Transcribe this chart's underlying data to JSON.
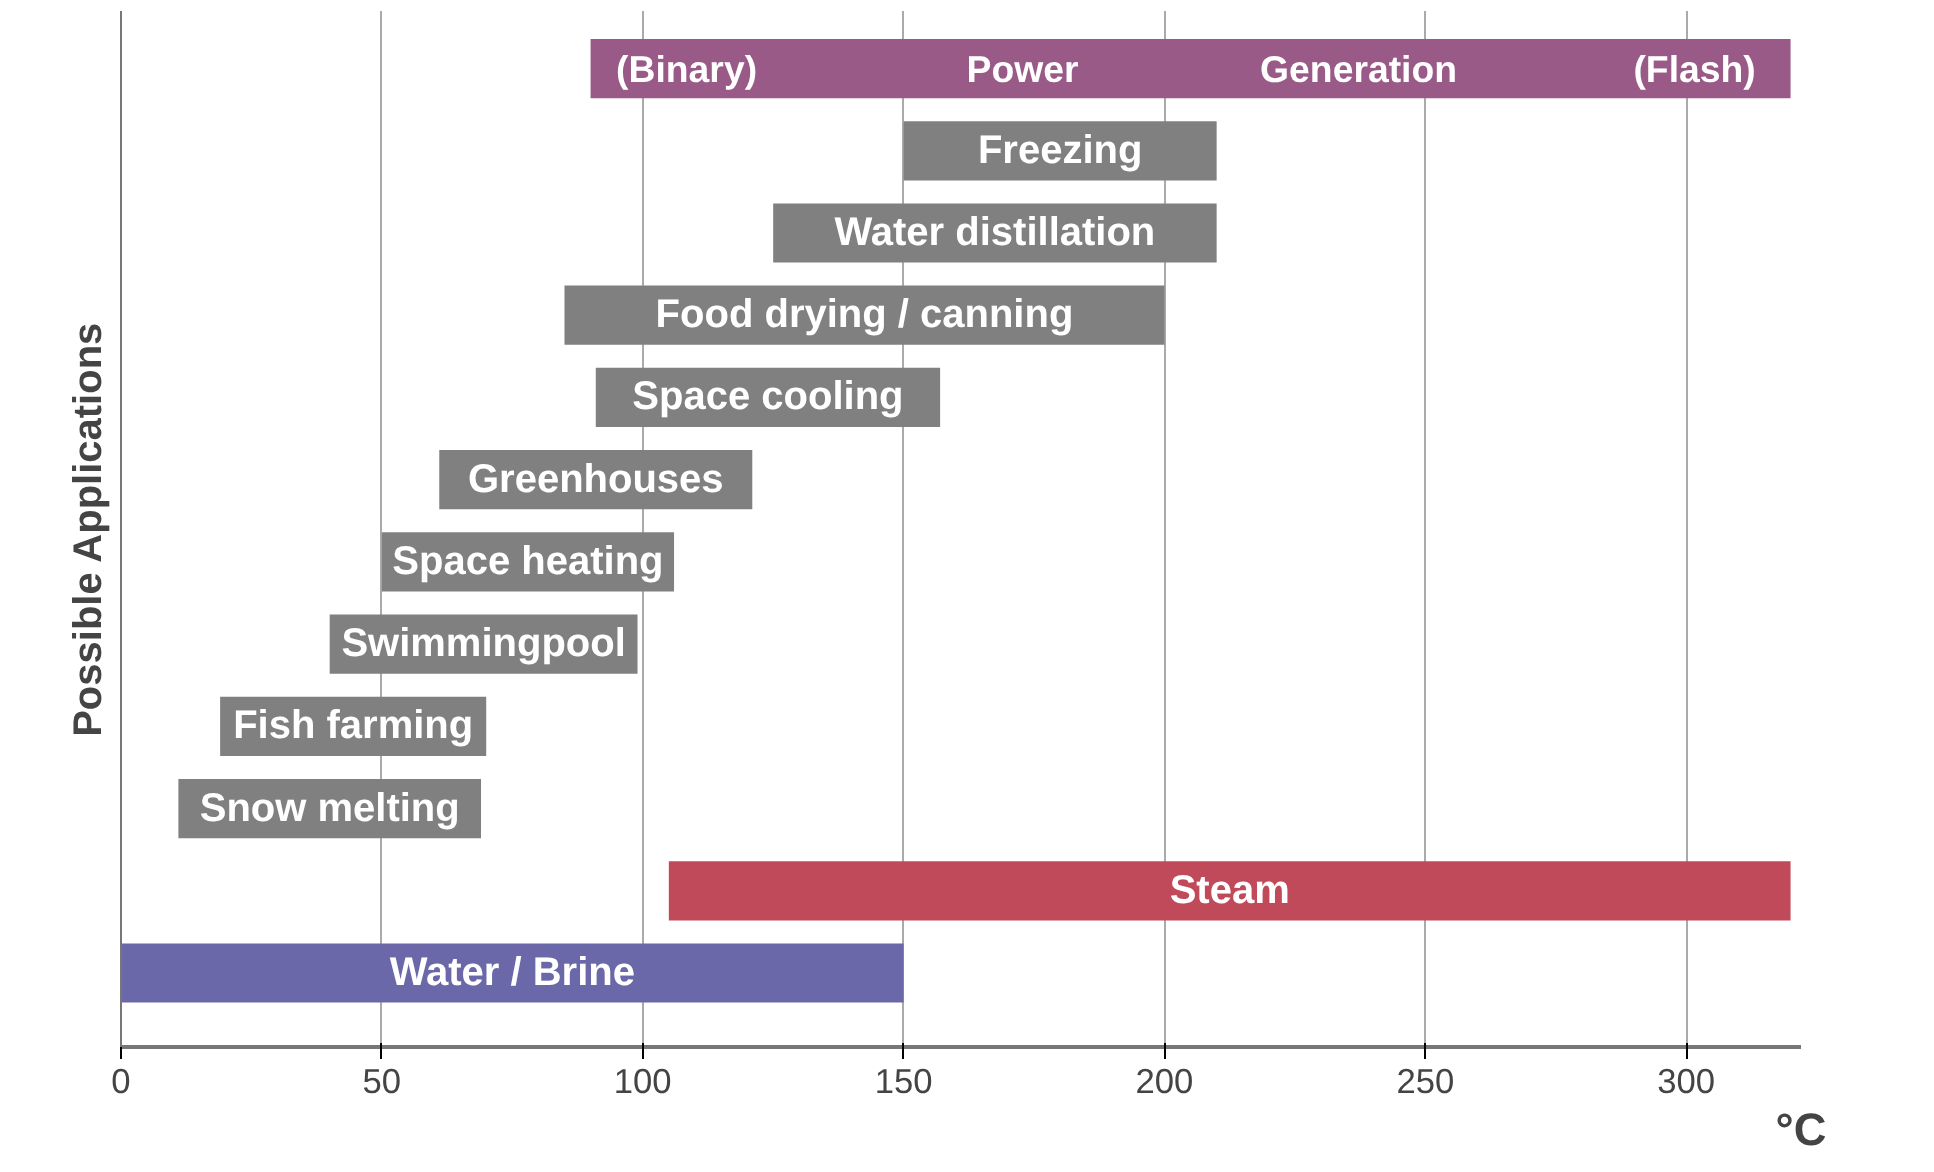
{
  "chart_data": {
    "type": "bar",
    "orientation": "horizontal",
    "ylabel": "Possible Applications",
    "xlabel": "°C",
    "categories": [
      null,
      "Freezing",
      "Water distillation",
      "Food drying / canning",
      "Space cooling",
      "Greenhouses",
      "Space heating",
      "Swimmingpool",
      "Fish farming",
      "Snow melting",
      "Steam",
      "Water / Brine"
    ],
    "base": [
      90,
      150,
      125,
      85,
      91,
      61,
      50,
      40,
      19,
      11,
      105,
      0
    ],
    "values": [
      230,
      60,
      85,
      115,
      66,
      60,
      56,
      59,
      51,
      58,
      215,
      150
    ],
    "colors": [
      "#9a5a88",
      "#808080",
      "#808080",
      "#808080",
      "#808080",
      "#808080",
      "#808080",
      "#808080",
      "#808080",
      "#808080",
      "#c04a5a",
      "#6a68a8"
    ],
    "annotations": [
      "(Binary)",
      "Power",
      "Generation",
      "(Flash)"
    ],
    "xlim": [
      0,
      322
    ],
    "xticks": [
      0,
      50,
      100,
      150,
      200,
      250,
      300
    ],
    "grid": "x",
    "tick_labels": "x"
  }
}
